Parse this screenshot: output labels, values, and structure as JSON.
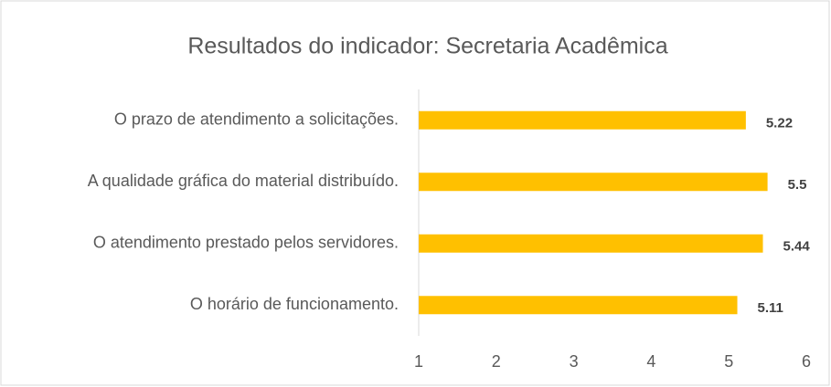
{
  "chart_data": {
    "type": "bar",
    "orientation": "horizontal",
    "title": "Resultados do indicador: Secretaria Acadêmica",
    "categories": [
      "O prazo de atendimento a solicitações.",
      "A qualidade gráfica do material distribuído.",
      "O atendimento prestado pelos servidores.",
      "O horário de funcionamento."
    ],
    "values": [
      5.22,
      5.5,
      5.44,
      5.11
    ],
    "color": "#ffc000",
    "xlim": [
      1,
      6
    ],
    "xticks": [
      1,
      2,
      3,
      4,
      5,
      6
    ]
  }
}
